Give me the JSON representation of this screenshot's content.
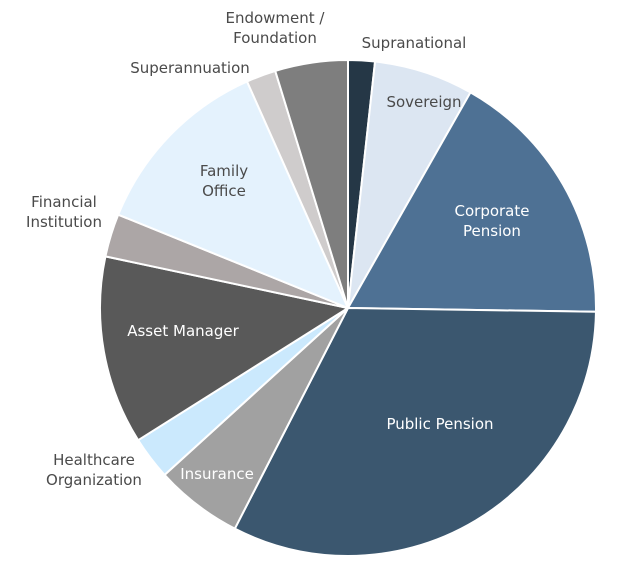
{
  "chart_data": {
    "type": "pie",
    "title": "",
    "legend": "none",
    "slices": [
      {
        "label": "Supranational",
        "value": 1.8,
        "color": "#253746",
        "label_color": "#4a4a4a"
      },
      {
        "label": "Sovereign",
        "value": 6.7,
        "color": "#dce6f2",
        "label_color": "#4a4a4a"
      },
      {
        "label": "Corporate Pension",
        "value": 17.6,
        "color": "#4e7194",
        "label_color": "#ffffff"
      },
      {
        "label": "Public Pension",
        "value": 33.4,
        "color": "#3b576f",
        "label_color": "#ffffff"
      },
      {
        "label": "Insurance",
        "value": 5.9,
        "color": "#a1a1a1",
        "label_color": "#ffffff"
      },
      {
        "label": "Healthcare Organization",
        "value": 2.9,
        "color": "#cbe9fd",
        "label_color": "#4a4a4a"
      },
      {
        "label": "Asset Manager",
        "value": 12.7,
        "color": "#595959",
        "label_color": "#ffffff"
      },
      {
        "label": "Financial Institution",
        "value": 2.9,
        "color": "#aca6a6",
        "label_color": "#4a4a4a"
      },
      {
        "label": "Family Office",
        "value": 12.6,
        "color": "#e4f2fd",
        "label_color": "#4a4a4a"
      },
      {
        "label": "Superannuation",
        "value": 2.0,
        "color": "#cfcccc",
        "label_color": "#4a4a4a"
      },
      {
        "label": "Endowment / Foundation",
        "value": 4.9,
        "color": "#7e7e7e",
        "label_color": "#4a4a4a"
      }
    ]
  }
}
